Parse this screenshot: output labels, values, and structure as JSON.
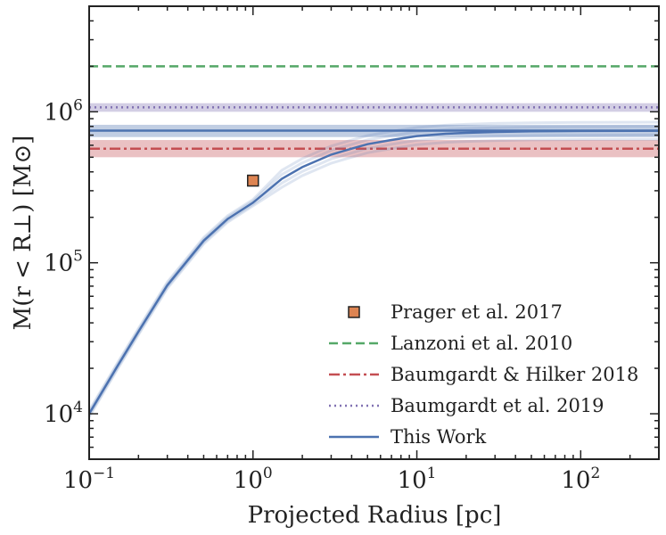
{
  "chart_data": {
    "type": "line",
    "xscale": "log",
    "yscale": "log",
    "xlim": [
      0.1,
      300
    ],
    "ylim": [
      5000,
      5000000
    ],
    "xlabel": "Projected Radius [pc]",
    "ylabel": "M(r < R⊥) [M⊙]",
    "x_ticks": [
      {
        "base": "10",
        "exp": "−1",
        "value": 0.1
      },
      {
        "base": "10",
        "exp": "0",
        "value": 1
      },
      {
        "base": "10",
        "exp": "1",
        "value": 10
      },
      {
        "base": "10",
        "exp": "2",
        "value": 100
      }
    ],
    "y_ticks": [
      {
        "base": "10",
        "exp": "4",
        "value": 10000
      },
      {
        "base": "10",
        "exp": "5",
        "value": 100000
      },
      {
        "base": "10",
        "exp": "6",
        "value": 1000000
      }
    ],
    "legend_position": "lower-right",
    "grid": false,
    "series": [
      {
        "name": "Prager et al. 2017",
        "kind": "point",
        "x": 1.0,
        "y": 350000,
        "color": "#dd8452",
        "edge": "#222222"
      },
      {
        "name": "Lanzoni et al. 2010",
        "kind": "hline",
        "y": 2000000,
        "color": "#55a868",
        "style": "dashed"
      },
      {
        "name": "Baumgardt & Hilker 2018",
        "kind": "hline",
        "y": 570000,
        "band": [
          500000,
          650000
        ],
        "color": "#c44e52",
        "style": "dashdot"
      },
      {
        "name": "Baumgardt et al. 2019",
        "kind": "hline",
        "y": 1070000,
        "band": [
          1000000,
          1140000
        ],
        "color": "#8172b2",
        "style": "dotted"
      },
      {
        "name": "This Work",
        "kind": "curve",
        "color": "#4c72b0",
        "style": "solid",
        "asymptote": 750000,
        "asymptote_band": [
          680000,
          820000
        ],
        "x": [
          0.1,
          0.15,
          0.2,
          0.3,
          0.5,
          0.7,
          1.0,
          1.5,
          2.0,
          3.0,
          4.0,
          5.0,
          7.0,
          10,
          15,
          20,
          30,
          50,
          100,
          200,
          300
        ],
        "y": [
          10000,
          21000,
          35000,
          71000,
          140000,
          195000,
          250000,
          360000,
          430000,
          520000,
          570000,
          610000,
          650000,
          690000,
          715000,
          725000,
          735000,
          742000,
          746000,
          748000,
          749000
        ]
      }
    ]
  }
}
